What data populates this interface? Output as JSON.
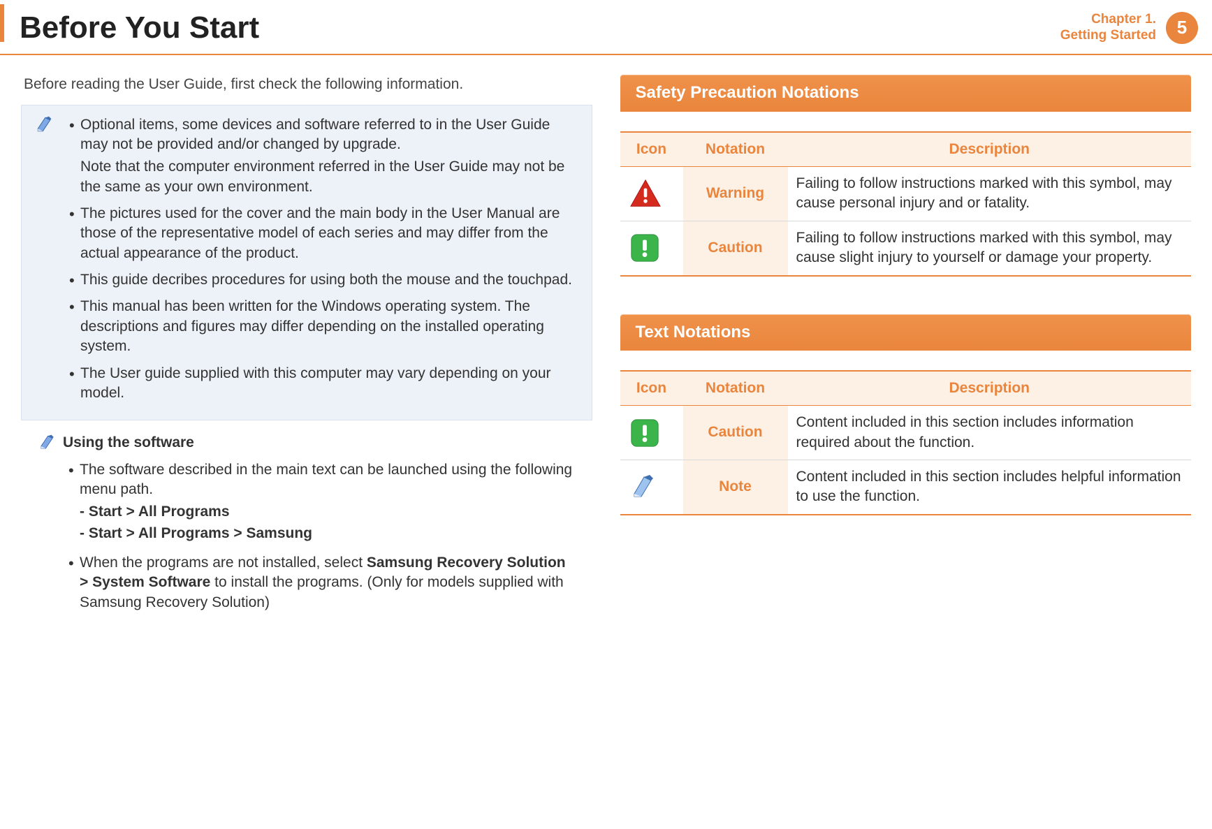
{
  "colors": {
    "accent": "#e9853d",
    "accent_light_bg": "#fdf1e6",
    "note_bg": "#edf2f8",
    "note_border": "#d9e2ee",
    "text": "#333",
    "white": "#ffffff",
    "table_row_border": "#d9d9d9",
    "warning_red": "#d52b1e",
    "caution_green": "#3bb44a"
  },
  "typography": {
    "body_pt": 16,
    "title_pt": 33,
    "banner_pt": 18,
    "table_header_pt": 16
  },
  "header": {
    "title": "Before You Start",
    "chapter_line1": "Chapter 1.",
    "chapter_line2": "Getting Started",
    "page_number": "5"
  },
  "left": {
    "intro": "Before reading the User Guide, first check the following information.",
    "notes": [
      {
        "text": "Optional items, some devices and software referred to in the User Guide may not be provided and/or changed by upgrade.",
        "sub": "Note that the computer environment referred in the User Guide may not be the same as your own environment."
      },
      {
        "text": "The pictures used for the cover and the main body in the User Manual are those of the representative model of each series and may differ from the actual appearance of the product."
      },
      {
        "text": "This guide decribes procedures for using both the mouse and the touchpad."
      },
      {
        "text": "This manual has been written for the Windows operating system. The descriptions and figures may differ depending on the installed operating system."
      },
      {
        "text": "The User guide supplied with this computer may vary depending on your model."
      }
    ],
    "software": {
      "heading": "Using the software",
      "items": [
        {
          "lead": "The software described in the main text can be launched using the following menu path.",
          "paths": [
            "- Start > All Programs",
            "- Start > All Programs > Samsung"
          ]
        },
        {
          "html": "When the programs are not installed, select <b>Samsung Recovery Solution > System Software</b> to install the programs. (Only for models supplied with Samsung Recovery Solution)"
        }
      ]
    }
  },
  "right": {
    "section1": {
      "title": "Safety Precaution Notations",
      "columns": [
        "Icon",
        "Notation",
        "Description"
      ],
      "rows": [
        {
          "icon": "warning",
          "notation": "Warning",
          "description": "Failing to follow instructions marked with this symbol, may cause personal injury and or fatality."
        },
        {
          "icon": "caution",
          "notation": "Caution",
          "description": "Failing to follow instructions marked with this symbol, may cause slight injury to yourself or damage your property."
        }
      ]
    },
    "section2": {
      "title": "Text Notations",
      "columns": [
        "Icon",
        "Notation",
        "Description"
      ],
      "rows": [
        {
          "icon": "caution",
          "notation": "Caution",
          "description": "Content included in this section includes information required about the function."
        },
        {
          "icon": "note",
          "notation": "Note",
          "description": "Content included in this section includes helpful information to use the function."
        }
      ]
    }
  }
}
